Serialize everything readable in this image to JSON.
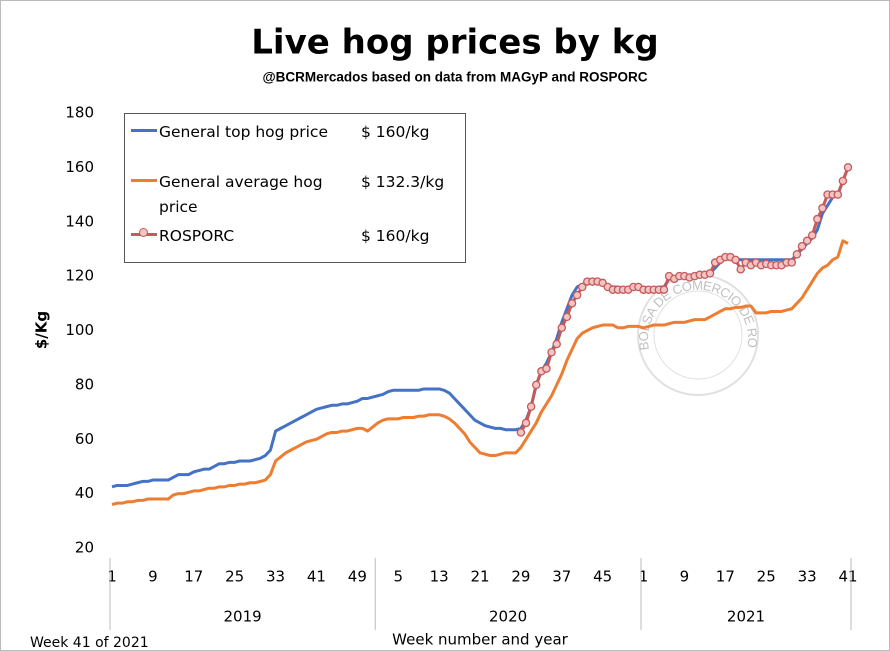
{
  "chart_data": {
    "type": "line",
    "title": "Live hog prices by kg",
    "subtitle": "@BCRMercados based on data from MAGyP and ROSPORC",
    "y_label": "$/Kg",
    "x_label": "Week number and year",
    "footnote": "Week 41 of 2021",
    "watermark": "BOLSA DE COMERCIO DE ROSARIO",
    "categories": [
      "1",
      null,
      null,
      null,
      null,
      null,
      null,
      null,
      "9",
      null,
      null,
      null,
      null,
      null,
      null,
      null,
      "17",
      null,
      null,
      null,
      null,
      null,
      null,
      null,
      "25",
      null,
      null,
      null,
      null,
      null,
      null,
      null,
      "33",
      null,
      null,
      null,
      null,
      null,
      null,
      null,
      "41",
      null,
      null,
      null,
      null,
      null,
      null,
      null,
      "49",
      null,
      null,
      null,
      null,
      null,
      null,
      null,
      "5",
      null,
      null,
      null,
      null,
      null,
      null,
      null,
      "13",
      null,
      null,
      null,
      null,
      null,
      null,
      null,
      "21",
      null,
      null,
      null,
      null,
      null,
      null,
      null,
      "29",
      null,
      null,
      null,
      null,
      null,
      null,
      null,
      "37",
      null,
      null,
      null,
      null,
      null,
      null,
      null,
      "45",
      null,
      null,
      null,
      null,
      null,
      null,
      null,
      "1",
      null,
      null,
      null,
      null,
      null,
      null,
      null,
      "9",
      null,
      null,
      null,
      null,
      null,
      null,
      null,
      "17",
      null,
      null,
      null,
      null,
      null,
      null,
      null,
      "25",
      null,
      null,
      null,
      null,
      null,
      null,
      null,
      "33",
      null,
      null,
      null,
      null,
      null,
      null,
      null,
      "41"
    ],
    "x_groups": [
      {
        "label": "2019",
        "size": 52
      },
      {
        "label": "2020",
        "size": 52
      },
      {
        "label": "2021",
        "size": 41
      }
    ],
    "ylim": [
      20,
      180
    ],
    "yticks": [
      20,
      40,
      60,
      80,
      100,
      120,
      140,
      160,
      180
    ],
    "legend_values": [
      "$ 160/kg",
      "$ 132.3/kg",
      "$ 160/kg"
    ],
    "series": [
      {
        "name": "General top hog price",
        "color": "#4472c4",
        "values": [
          42.5,
          43,
          43,
          43,
          43.5,
          44,
          44.5,
          44.5,
          45,
          45,
          45,
          45,
          46,
          47,
          47,
          47,
          48,
          48.5,
          49,
          49,
          50,
          51,
          51,
          51.5,
          51.5,
          52,
          52,
          52,
          52.5,
          53,
          54,
          56,
          63,
          64,
          65,
          66,
          67,
          68,
          69,
          70,
          71,
          71.5,
          72,
          72.5,
          72.5,
          73,
          73,
          73.5,
          74,
          75,
          75,
          75.5,
          76,
          76.5,
          77.5,
          78,
          78,
          78,
          78,
          78,
          78,
          78.5,
          78.5,
          78.5,
          78.5,
          78,
          77,
          75,
          73,
          71,
          69,
          67,
          66,
          65,
          64.5,
          64,
          64,
          63.5,
          63.5,
          63.5,
          64,
          67,
          72,
          80,
          85,
          88,
          92,
          97,
          103,
          108,
          113,
          116,
          117,
          117.5,
          118,
          117.5,
          117,
          116.5,
          116,
          116,
          115.5,
          115.5,
          115.5,
          115.5,
          116,
          115.5,
          115.5,
          116,
          116,
          119,
          119.5,
          119.5,
          119.5,
          120,
          120,
          120,
          120.5,
          121,
          123,
          125,
          127,
          127,
          126.5,
          126,
          126,
          126,
          126,
          126,
          126,
          126,
          126,
          126,
          126,
          126,
          128,
          130,
          132,
          134,
          137,
          143,
          146,
          149,
          150,
          155,
          160
        ]
      },
      {
        "name": "General average hog price",
        "color": "#ed7d31",
        "values": [
          36,
          36.5,
          36.5,
          37,
          37,
          37.5,
          37.5,
          38,
          38,
          38,
          38,
          38,
          39.5,
          40,
          40,
          40.5,
          41,
          41,
          41.5,
          42,
          42,
          42.5,
          42.5,
          43,
          43,
          43.5,
          43.5,
          44,
          44,
          44.5,
          45,
          47,
          52,
          53.5,
          55,
          56,
          57,
          58,
          59,
          59.5,
          60,
          61,
          62,
          62.5,
          62.5,
          63,
          63,
          63.5,
          64,
          64,
          63,
          64.5,
          66,
          67,
          67.5,
          67.5,
          67.5,
          68,
          68,
          68,
          68.5,
          68.5,
          69,
          69,
          69,
          68.5,
          67.5,
          66,
          64,
          62,
          59,
          57,
          55,
          54.5,
          54,
          54,
          54.5,
          55,
          55,
          55,
          57,
          60,
          63,
          66,
          70,
          73,
          76,
          80,
          84,
          89,
          93,
          97,
          99,
          100,
          101,
          101.5,
          102,
          102,
          102,
          101,
          101,
          101.5,
          101.5,
          101.5,
          101,
          101.5,
          102,
          102,
          102,
          102.5,
          103,
          103,
          103,
          103.5,
          104,
          104,
          104,
          105,
          106,
          107,
          108,
          108,
          108.5,
          108.5,
          109,
          109,
          106.5,
          106.5,
          106.5,
          107,
          107,
          107,
          107.5,
          108,
          110,
          112,
          115,
          118,
          121,
          123,
          124,
          126,
          127,
          133,
          132
        ]
      },
      {
        "name": "ROSPORC",
        "color": "#c55a5a",
        "marker_fill": "#f2c4c4",
        "values": [
          null,
          null,
          null,
          null,
          null,
          null,
          null,
          null,
          null,
          null,
          null,
          null,
          null,
          null,
          null,
          null,
          null,
          null,
          null,
          null,
          null,
          null,
          null,
          null,
          null,
          null,
          null,
          null,
          null,
          null,
          null,
          null,
          null,
          null,
          null,
          null,
          null,
          null,
          null,
          null,
          null,
          null,
          null,
          null,
          null,
          null,
          null,
          null,
          null,
          null,
          null,
          null,
          null,
          null,
          null,
          null,
          null,
          null,
          null,
          null,
          null,
          null,
          null,
          null,
          null,
          null,
          null,
          null,
          null,
          null,
          null,
          null,
          null,
          null,
          null,
          null,
          null,
          null,
          null,
          null,
          62.5,
          66,
          72,
          80,
          85,
          86,
          92,
          95,
          101,
          105,
          110,
          113,
          116,
          118,
          118,
          118,
          117.5,
          116,
          115,
          115,
          115,
          115,
          116,
          116,
          115,
          115,
          115,
          115,
          115,
          120,
          119,
          120,
          120,
          119.5,
          120,
          120.5,
          120.5,
          121,
          125,
          126,
          127,
          127,
          126,
          122.5,
          125,
          124,
          125,
          124,
          124.5,
          124,
          124,
          124,
          125,
          125,
          128,
          131,
          133,
          135,
          141,
          145,
          150,
          150,
          150,
          155,
          160
        ]
      }
    ]
  }
}
